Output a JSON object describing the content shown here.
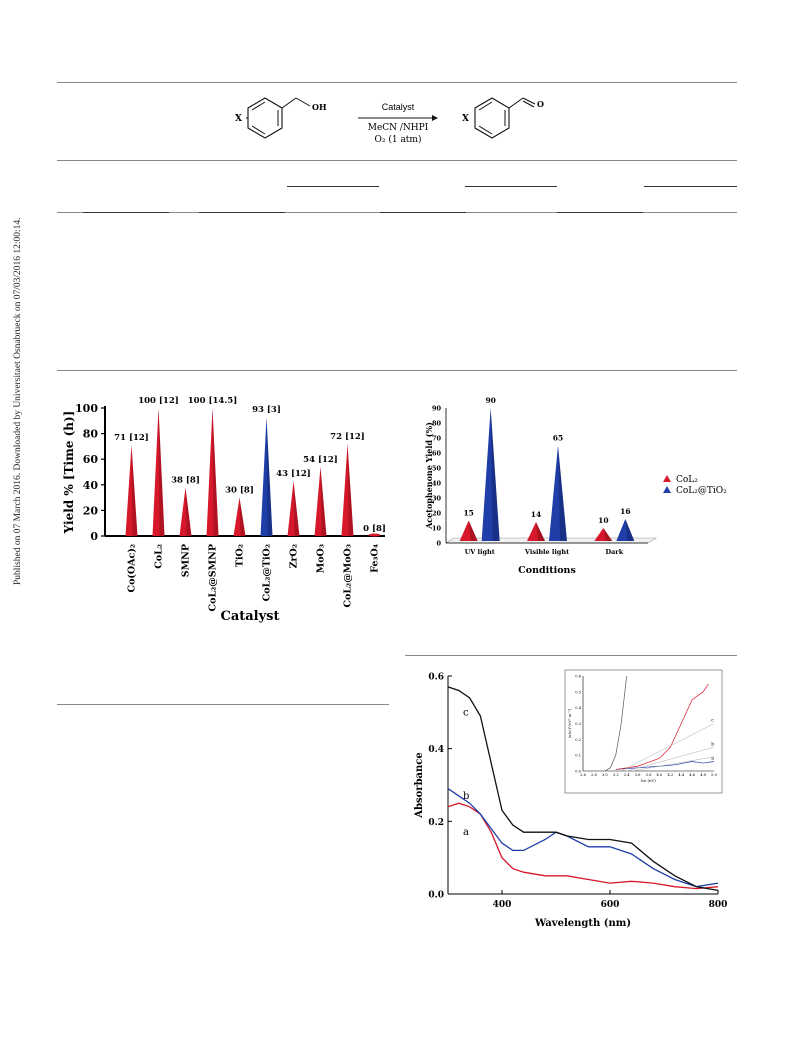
{
  "sidebar_note": "Published on 07 March 2016. Downloaded by Universitaet Osnabrueck on 07/03/2016 12:00:14.",
  "scheme": {
    "reactant_substituent": "X",
    "reactant_group": "OH",
    "arrow_top": "Catalyst",
    "arrow_bottom_1": "MeCN /NHPI",
    "arrow_bottom_2": "O₂ (1 atm)",
    "product_substituent": "X",
    "product_group": "O"
  },
  "colors": {
    "red_series": "#d6182a",
    "blue_series": "#1f3ea8",
    "black_curve": "#111111"
  },
  "chart_data": [
    {
      "type": "bar",
      "ylabel": "Yield % [Time (h)]",
      "xlabel": "Catalyst",
      "ylim": [
        0,
        100
      ],
      "yticks": [
        "0",
        "20",
        "40",
        "60",
        "80",
        "100"
      ],
      "categories": [
        "Co(OAc)₂",
        "CoL₂",
        "SMNP",
        "CoL₂@SMNP",
        "TiO₂",
        "CoL₂@TiO₂",
        "ZrO₂",
        "MoO₃",
        "CoL₂@MoO₃",
        "Fe₃O₄"
      ],
      "values": [
        71,
        100,
        38,
        100,
        30,
        93,
        43,
        54,
        72,
        0
      ],
      "data_labels": [
        "71 [12]",
        "100 [12]",
        "38 [8]",
        "100 [14.5]",
        "30 [8]",
        "93 [3]",
        "43 [12]",
        "54 [12]",
        "72 [12]",
        "0 [8]"
      ],
      "bar_colors": [
        "red",
        "red",
        "red",
        "red",
        "red",
        "blue",
        "red",
        "red",
        "red",
        "red"
      ]
    },
    {
      "type": "bar",
      "ylabel": "Acetophenone Yield (%)",
      "xlabel": "Conditions",
      "ylim": [
        0,
        90
      ],
      "yticks": [
        "0",
        "10",
        "20",
        "30",
        "40",
        "50",
        "60",
        "70",
        "80",
        "90"
      ],
      "categories": [
        "UV light",
        "Visible light",
        "Dark"
      ],
      "series": [
        {
          "name": "CoL₂",
          "values": [
            15,
            14,
            10
          ]
        },
        {
          "name": "CoL₂@TiO₂",
          "values": [
            90,
            65,
            16
          ]
        }
      ],
      "legend": "right"
    },
    {
      "type": "line",
      "ylabel": "Absorbance",
      "xlabel": "Wavelength (nm)",
      "xlim": [
        300,
        800
      ],
      "ylim": [
        0,
        0.6
      ],
      "xticks": [
        "400",
        "600",
        "800"
      ],
      "yticks": [
        "0.0",
        "0.2",
        "0.4",
        "0.6"
      ],
      "series": [
        {
          "name": "a",
          "x": [
            300,
            320,
            340,
            360,
            380,
            400,
            420,
            440,
            480,
            520,
            560,
            600,
            640,
            680,
            720,
            760,
            800
          ],
          "y": [
            0.24,
            0.25,
            0.24,
            0.22,
            0.17,
            0.1,
            0.07,
            0.06,
            0.05,
            0.05,
            0.04,
            0.03,
            0.035,
            0.03,
            0.02,
            0.015,
            0.02
          ]
        },
        {
          "name": "b",
          "x": [
            300,
            320,
            340,
            360,
            380,
            400,
            420,
            440,
            480,
            500,
            520,
            560,
            600,
            640,
            680,
            720,
            760,
            800
          ],
          "y": [
            0.29,
            0.27,
            0.25,
            0.22,
            0.18,
            0.14,
            0.12,
            0.12,
            0.15,
            0.17,
            0.16,
            0.13,
            0.13,
            0.11,
            0.07,
            0.04,
            0.02,
            0.03
          ]
        },
        {
          "name": "c",
          "x": [
            300,
            320,
            340,
            360,
            380,
            400,
            420,
            440,
            480,
            500,
            520,
            560,
            600,
            640,
            680,
            720,
            760,
            800
          ],
          "y": [
            0.57,
            0.56,
            0.54,
            0.49,
            0.36,
            0.23,
            0.19,
            0.17,
            0.17,
            0.17,
            0.16,
            0.15,
            0.15,
            0.14,
            0.09,
            0.05,
            0.02,
            0.01
          ]
        }
      ],
      "series_labels": [
        "a",
        "b",
        "c"
      ],
      "inset": {
        "xlabel": "hν (eV)",
        "ylabel": "(αhν)²(eV² m⁻²)",
        "xticks": [
          "2.6",
          "2.8",
          "3.0",
          "3.2",
          "3.4",
          "3.6",
          "3.8",
          "4.0",
          "4.2",
          "4.4",
          "4.6",
          "4.8",
          "5.0"
        ],
        "yticks": [
          "0.0",
          "0.1",
          "0.2",
          "0.3",
          "0.4",
          "0.5",
          "0.6"
        ],
        "xlim": [
          2.6,
          5.0
        ],
        "ylim": [
          0,
          0.6
        ],
        "series_labels": [
          "a",
          "b",
          "c"
        ]
      }
    }
  ]
}
